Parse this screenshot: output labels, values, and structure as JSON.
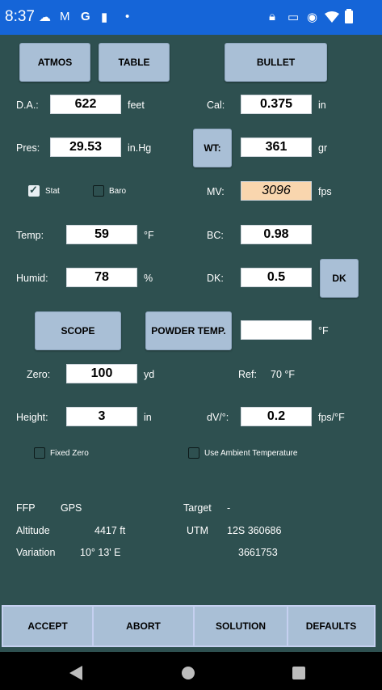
{
  "status_bar": {
    "time": "8:37",
    "left_icons": [
      "cloud-upload-icon",
      "gmail-icon",
      "google-icon",
      "sim-card-icon",
      "dot-icon"
    ],
    "right_icons": [
      "lock-icon",
      "cast-icon",
      "location-icon",
      "wifi-icon",
      "battery-icon"
    ]
  },
  "tabs": {
    "atmos": "ATMOS",
    "table": "TABLE",
    "bullet": "BULLET"
  },
  "atmos": {
    "da_label": "D.A.:",
    "da_value": "622",
    "da_unit": "feet",
    "pres_label": "Pres:",
    "pres_value": "29.53",
    "pres_unit": "in.Hg",
    "stat_label": "Stat",
    "stat_checked": true,
    "baro_label": "Baro",
    "baro_checked": false,
    "temp_label": "Temp:",
    "temp_value": "59",
    "temp_unit": "°F",
    "humid_label": "Humid:",
    "humid_value": "78",
    "humid_unit": "%"
  },
  "bullet": {
    "cal_label": "Cal:",
    "cal_value": "0.375",
    "cal_unit": "in",
    "wt_button": "WT:",
    "wt_value": "361",
    "wt_unit": "gr",
    "mv_label": "MV:",
    "mv_value": "3096",
    "mv_unit": "fps",
    "bc_label": "BC:",
    "bc_value": "0.98",
    "dk_label": "DK:",
    "dk_value": "0.5",
    "dk_button": "DK"
  },
  "scope": {
    "scope_button": "SCOPE",
    "powder_button": "POWDER TEMP.",
    "powder_value": "",
    "powder_unit": "°F",
    "zero_label": "Zero:",
    "zero_value": "100",
    "zero_unit": "yd",
    "ref_label": "Ref:",
    "ref_value": "70 °F",
    "height_label": "Height:",
    "height_value": "3",
    "height_unit": "in",
    "dv_label": "dV/°:",
    "dv_value": "0.2",
    "dv_unit": "fps/°F",
    "fixed_zero_label": "Fixed Zero",
    "fixed_zero_checked": false,
    "ambient_label": "Use Ambient Temperature",
    "ambient_checked": false
  },
  "info": {
    "ffp": "FFP",
    "gps": "GPS",
    "target_label": "Target",
    "target_value": "-",
    "altitude_label": "Altitude",
    "altitude_value": "4417 ft",
    "utm_label": "UTM",
    "utm_value_1": "12S 360686",
    "utm_value_2": "3661753",
    "variation_label": "Variation",
    "variation_value": "10° 13' E"
  },
  "bottom_buttons": {
    "accept": "ACCEPT",
    "abort": "ABORT",
    "solution": "SOLUTION",
    "defaults": "DEFAULTS"
  },
  "nav": [
    "back-icon",
    "home-icon",
    "recents-icon"
  ],
  "colors": {
    "status_bar": "#1565d8",
    "background": "#2e5050",
    "button": "#a9bfd6",
    "mv_field": "#f9d6ae"
  }
}
